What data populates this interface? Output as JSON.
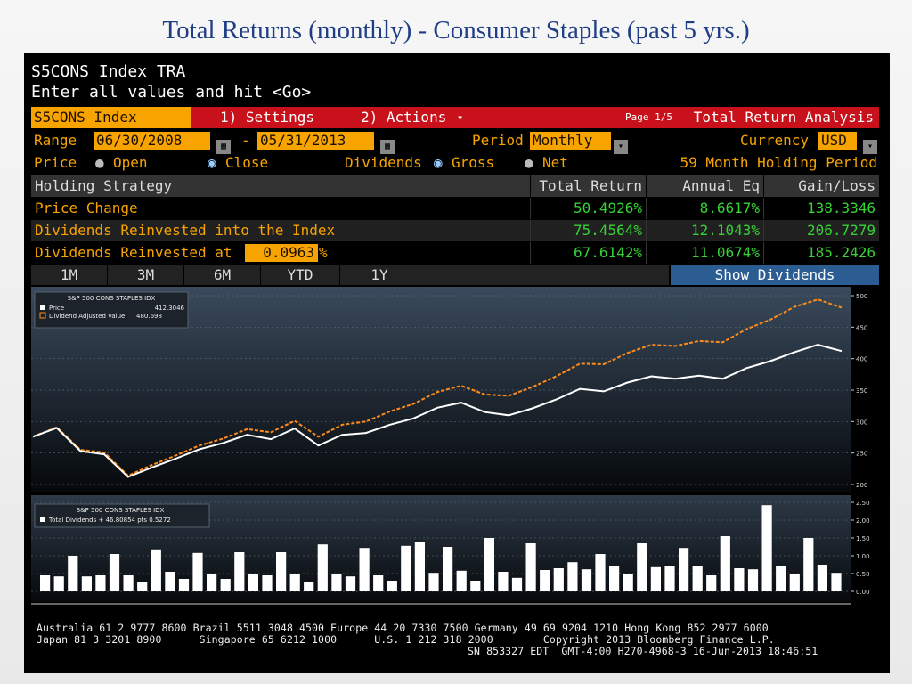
{
  "slide_title": "Total Returns (monthly) - Consumer Staples (past 5 yrs.)",
  "terminal": {
    "line1": "S5CONS Index TRA",
    "line2": "Enter all values and hit <Go>"
  },
  "toolbar": {
    "ticker": "S5CONS Index",
    "settings": "1) Settings",
    "actions": "2) Actions",
    "page": "Page 1/5",
    "analysis": "Total Return Analysis"
  },
  "range": {
    "label": "Range",
    "start": "06/30/2008",
    "dash": "-",
    "end": "05/31/2013",
    "period_label": "Period",
    "period": "Monthly",
    "currency_label": "Currency",
    "currency": "USD"
  },
  "price_row": {
    "price_label": "Price",
    "open": "Open",
    "close": "Close",
    "dividends_label": "Dividends",
    "gross": "Gross",
    "net": "Net",
    "holding": "59 Month Holding Period"
  },
  "table": {
    "headers": [
      "Holding Strategy",
      "Total Return",
      "Annual Eq",
      "Gain/Loss"
    ],
    "rows": [
      {
        "label": "Price Change",
        "total": "50.4926%",
        "annual": "8.6617%",
        "gain": "138.3346"
      },
      {
        "label": "Dividends Reinvested into the Index",
        "total": "75.4564%",
        "annual": "12.1043%",
        "gain": "206.7279"
      },
      {
        "label": "Dividends Reinvested at",
        "rate": "0.0963",
        "pct": "%",
        "total": "67.6142%",
        "annual": "11.0674%",
        "gain": "185.2426"
      }
    ]
  },
  "tabs": [
    "1M",
    "3M",
    "6M",
    "YTD",
    "1Y"
  ],
  "show_dividends": "Show Dividends",
  "colors": {
    "orange": "#f7a300",
    "green": "#35d235",
    "blue_button": "#2b5d92",
    "price_line": "#ffffff",
    "adjusted_line": "#ff8c1a"
  },
  "chart_data": [
    {
      "type": "line",
      "legend_title": "S&P 500 CONS STAPLES IDX",
      "series": [
        {
          "name": "Price",
          "legend_value": "412.3046",
          "values": [
            276,
            290,
            253,
            248,
            212,
            227,
            241,
            256,
            266,
            279,
            272,
            289,
            262,
            279,
            282,
            295,
            305,
            322,
            330,
            315,
            310,
            321,
            335,
            352,
            348,
            362,
            372,
            368,
            373,
            368,
            385,
            396,
            410,
            422,
            412
          ]
        },
        {
          "name": "Dividend Adjusted Value",
          "legend_value": "480.698",
          "values": [
            276,
            291,
            255,
            251,
            214,
            231,
            246,
            262,
            273,
            288,
            283,
            301,
            276,
            295,
            300,
            316,
            328,
            347,
            357,
            343,
            341,
            355,
            372,
            392,
            391,
            409,
            422,
            420,
            428,
            426,
            447,
            462,
            482,
            494,
            481
          ]
        }
      ],
      "ylim": [
        200,
        500
      ],
      "yticks": [
        "500",
        "450",
        "400",
        "350",
        "300",
        "250",
        "200"
      ]
    },
    {
      "type": "bar",
      "legend_title": "S&P 500 CONS STAPLES IDX",
      "series": [
        {
          "name": "Total Dividends + 46.80854 pts 0.5272",
          "values": [
            0.45,
            0.42,
            1.0,
            0.42,
            0.45,
            1.05,
            0.45,
            0.25,
            1.18,
            0.55,
            0.35,
            1.08,
            0.48,
            0.35,
            1.1,
            0.48,
            0.45,
            1.1,
            0.48,
            0.25,
            1.32,
            0.5,
            0.42,
            1.22,
            0.45,
            0.3,
            1.28,
            1.38,
            0.52,
            1.25,
            0.58,
            0.3,
            1.5,
            0.55,
            0.38,
            1.35,
            0.6,
            0.65,
            0.82,
            0.62,
            1.05,
            0.7,
            0.5,
            1.35,
            0.68,
            0.72,
            1.22,
            0.7,
            0.45,
            1.55,
            0.65,
            0.62,
            2.42,
            0.7,
            0.5,
            1.5,
            0.75,
            0.52
          ]
        }
      ],
      "ylim": [
        0,
        2.5
      ],
      "yticks": [
        "2.50",
        "2.00",
        "1.50",
        "1.00",
        "0.50",
        "0.00"
      ]
    }
  ],
  "footer": {
    "line1": "Australia 61 2 9777 8600 Brazil 5511 3048 4500 Europe 44 20 7330 7500 Germany 49 69 9204 1210 Hong Kong 852 2977 6000",
    "line2": "Japan 81 3 3201 8900      Singapore 65 6212 1000      U.S. 1 212 318 2000        Copyright 2013 Bloomberg Finance L.P.",
    "line3": "SN 853327 EDT  GMT-4:00 H270-4968-3 16-Jun-2013 18:46:51"
  }
}
